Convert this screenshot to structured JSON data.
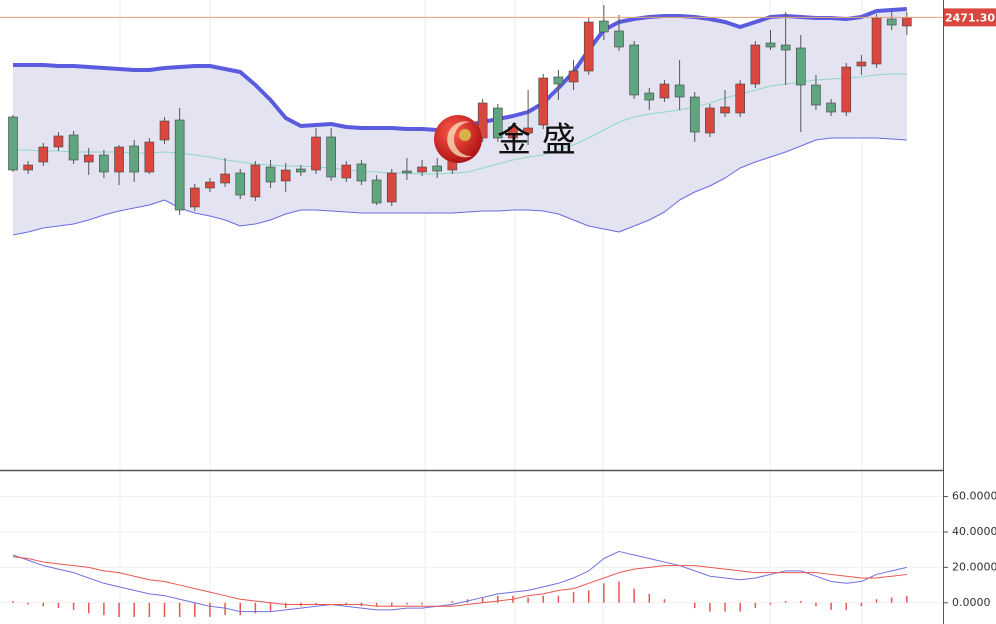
{
  "chart_data": [
    {
      "type": "candlestick",
      "price_label": {
        "value": 2471.3,
        "label": "2471.30"
      },
      "watermark": "金 盛",
      "ylim": [
        2245,
        2480
      ],
      "up_color": "#d9473e",
      "down_color": "#5fa57f",
      "open": [
        2421.5,
        2395,
        2399,
        2406.5,
        2412.5,
        2399,
        2402.5,
        2394,
        2407,
        2394,
        2410,
        2420,
        2376.5,
        2386,
        2388.5,
        2393.5,
        2381.5,
        2396.5,
        2389.5,
        2395.5,
        2395,
        2411.5,
        2391,
        2398,
        2390,
        2379,
        2394.5,
        2394,
        2397,
        2395,
        2410,
        2411,
        2426,
        2411,
        2413.5,
        2417.5,
        2441.5,
        2439,
        2444.5,
        2469.5,
        2464.5,
        2457.5,
        2433.5,
        2431,
        2437.5,
        2431.5,
        2413.5,
        2423.5,
        2423.5,
        2438,
        2458.5,
        2457.5,
        2456,
        2437.5,
        2428.5,
        2424,
        2447,
        2448,
        2470.5,
        2467
      ],
      "high": [
        2422.5,
        2399.5,
        2408.5,
        2414,
        2414.5,
        2406,
        2405,
        2407.5,
        2410,
        2411,
        2421.5,
        2426,
        2388,
        2391,
        2401,
        2395.5,
        2399.5,
        2400,
        2398.5,
        2397.5,
        2416,
        2416,
        2399.5,
        2400,
        2392.5,
        2395.5,
        2401,
        2400,
        2401,
        2405,
        2421,
        2430.5,
        2428,
        2418.5,
        2435,
        2443,
        2445,
        2450,
        2471,
        2477.5,
        2472.5,
        2459.5,
        2436,
        2440,
        2450,
        2434,
        2428,
        2435,
        2440,
        2459.5,
        2465,
        2474,
        2462.5,
        2442.5,
        2430.5,
        2448.5,
        2452.5,
        2473,
        2474,
        2474
      ],
      "low": [
        2394,
        2393,
        2397,
        2404.5,
        2398,
        2392.5,
        2391,
        2387.5,
        2389,
        2393,
        2408,
        2372.5,
        2374.5,
        2384,
        2386.5,
        2380.5,
        2379.5,
        2386,
        2384,
        2392,
        2393,
        2389.5,
        2389,
        2387.5,
        2377.5,
        2377,
        2390,
        2392,
        2391,
        2393,
        2408,
        2409,
        2409,
        2409,
        2407.5,
        2415.5,
        2430,
        2435,
        2442.5,
        2460,
        2454.5,
        2430.5,
        2425,
        2429,
        2425,
        2409,
        2411.5,
        2421.5,
        2421.5,
        2436,
        2455,
        2437.5,
        2414,
        2425,
        2422,
        2422,
        2442.5,
        2446,
        2465,
        2462.5
      ],
      "close": [
        2395,
        2397.5,
        2406.5,
        2412,
        2400,
        2402.5,
        2394,
        2406.5,
        2394,
        2409,
        2419.5,
        2375,
        2386,
        2389,
        2393,
        2382.5,
        2397.5,
        2389,
        2395,
        2394,
        2411.5,
        2391.5,
        2397.5,
        2389.5,
        2378.5,
        2393.5,
        2393.5,
        2396.5,
        2394.5,
        2402.5,
        2419,
        2428.5,
        2411,
        2416.5,
        2416,
        2441,
        2438,
        2444.5,
        2469,
        2464,
        2456.5,
        2432.5,
        2430,
        2438,
        2431.5,
        2414,
        2426,
        2426.5,
        2438,
        2457.5,
        2456.5,
        2455,
        2437.5,
        2427.5,
        2424,
        2446.5,
        2449,
        2471,
        2467.5,
        2471.3
      ],
      "band_fill": "#e3e3f2",
      "series": [
        {
          "color": "#5b5be0",
          "width": 4,
          "values": [
            2447.5,
            2447.5,
            2447.5,
            2447,
            2447,
            2446.5,
            2446,
            2445.5,
            2445,
            2445,
            2446,
            2446.5,
            2447,
            2447,
            2445.5,
            2444,
            2437.5,
            2430,
            2421,
            2417,
            2417.5,
            2418,
            2416.5,
            2416,
            2416,
            2416,
            2415.5,
            2415.5,
            2415,
            2415.5,
            2417.5,
            2419,
            2420.5,
            2422,
            2424,
            2428.5,
            2436,
            2444,
            2455,
            2465,
            2469,
            2470.5,
            2471.5,
            2472,
            2472,
            2471.5,
            2470.5,
            2469,
            2466.5,
            2469,
            2471.5,
            2472,
            2471.5,
            2471,
            2471,
            2470.5,
            2471.5,
            2474.5,
            2475,
            2475.5
          ]
        },
        {
          "color": "#8fd9c4",
          "width": 1,
          "values": [
            2405,
            2405,
            2404.5,
            2404.5,
            2404,
            2404,
            2404,
            2404,
            2403.5,
            2403.5,
            2404,
            2403.5,
            2402.5,
            2401.5,
            2400,
            2399,
            2398,
            2397.5,
            2397,
            2397,
            2396.5,
            2396,
            2395,
            2394.5,
            2394,
            2393.5,
            2393.5,
            2393,
            2393,
            2393.5,
            2394,
            2396,
            2398,
            2400,
            2401.5,
            2402.5,
            2405,
            2407.5,
            2411,
            2415,
            2419,
            2421.5,
            2423,
            2424,
            2425,
            2426.5,
            2428.5,
            2431,
            2433,
            2435,
            2437,
            2438,
            2439,
            2440,
            2440.5,
            2441,
            2441.5,
            2442.5,
            2443,
            2443
          ]
        },
        {
          "color": "#6b6be0",
          "width": 1,
          "values": [
            2362.5,
            2364,
            2366,
            2367,
            2368,
            2370,
            2372.5,
            2374.5,
            2376,
            2377.5,
            2380,
            2376,
            2373.5,
            2372,
            2370,
            2367,
            2368,
            2370,
            2373,
            2375,
            2375,
            2374.5,
            2374,
            2373.5,
            2373.5,
            2373.5,
            2373.5,
            2373.5,
            2373.5,
            2373.5,
            2374,
            2374.5,
            2374.5,
            2375,
            2375,
            2374.5,
            2373,
            2370,
            2367,
            2365.5,
            2364,
            2367,
            2370,
            2374,
            2380,
            2384,
            2387,
            2391,
            2396,
            2399,
            2401.5,
            2404,
            2407,
            2410,
            2411,
            2411,
            2411,
            2411,
            2410.5,
            2410
          ]
        }
      ]
    },
    {
      "type": "macd",
      "ylim": [
        -12,
        75
      ],
      "yticks": [
        {
          "value": 60,
          "label": "60.0000"
        },
        {
          "value": 40,
          "label": "40.0000"
        },
        {
          "value": 20,
          "label": "20.0000"
        },
        {
          "value": 0,
          "label": "0.0000"
        }
      ],
      "grid": true,
      "bar_color": "#e8574f",
      "bars": [
        1,
        -1,
        -2,
        -3,
        -4,
        -6,
        -7,
        -8,
        -8,
        -8,
        -8,
        -8,
        -8,
        -8,
        -7,
        -7,
        -6,
        -5,
        -3,
        -2,
        -1,
        0,
        -1,
        -2,
        -2,
        -2,
        -1,
        -1,
        0,
        1,
        2,
        3,
        4,
        4,
        3,
        4,
        4,
        6,
        7,
        11,
        12,
        8,
        5,
        2,
        0,
        -3,
        -5,
        -5,
        -5,
        -3,
        -1,
        1,
        1,
        -2,
        -4,
        -4,
        -2,
        2,
        3,
        4
      ],
      "series": [
        {
          "color": "#7070e0",
          "values": [
            27,
            24,
            21,
            19,
            17,
            14,
            11,
            9,
            7,
            5,
            4,
            2,
            0,
            -2,
            -3,
            -5,
            -5,
            -5,
            -4,
            -3,
            -2,
            -1,
            -2,
            -3,
            -4,
            -4,
            -3,
            -3,
            -2,
            -1,
            1,
            3,
            5,
            6,
            7,
            9,
            11,
            14,
            18,
            25,
            29,
            27,
            25,
            23,
            21,
            18,
            15,
            14,
            13,
            14,
            16,
            18,
            18,
            15,
            12,
            11,
            12,
            16,
            18,
            20
          ]
        },
        {
          "color": "#e8574f",
          "values": [
            26,
            25,
            23,
            22,
            21,
            20,
            18,
            17,
            15,
            13,
            12,
            10,
            8,
            6,
            4,
            2,
            1,
            0,
            -1,
            -1,
            -1,
            -1,
            -1,
            -1,
            -2,
            -2,
            -2,
            -2,
            -2,
            -2,
            -1,
            0,
            1,
            2,
            4,
            5,
            7,
            8,
            11,
            14,
            17,
            19,
            20,
            21,
            21,
            21,
            20,
            19,
            18,
            17,
            17,
            17,
            17,
            17,
            16,
            15,
            14,
            14,
            15,
            16
          ]
        }
      ]
    }
  ]
}
